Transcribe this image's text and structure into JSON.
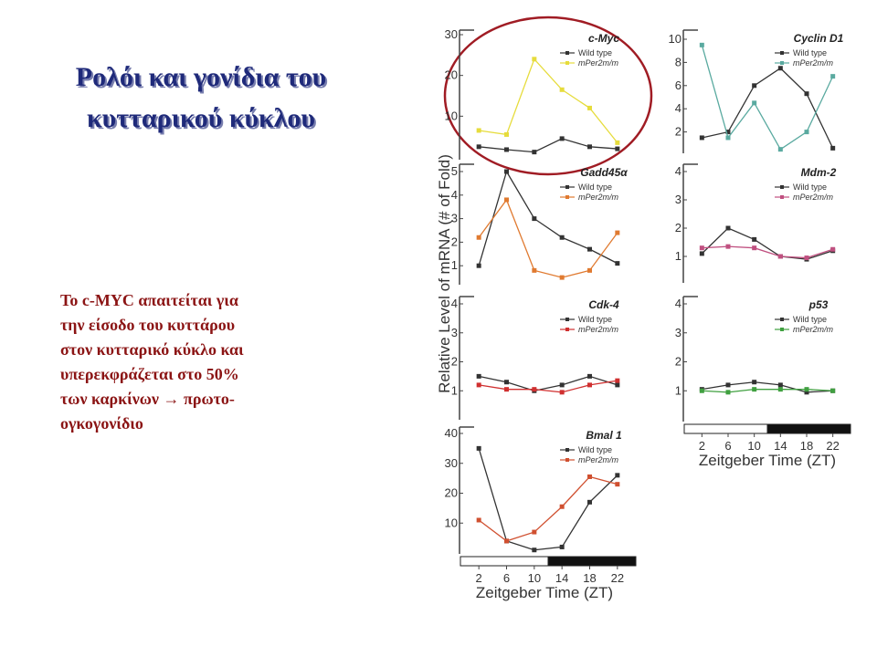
{
  "slide": {
    "title": [
      "Ρολόι και γονίδια του",
      "κυτταρικού κύκλου"
    ],
    "body": [
      "Το c-MYC απαιτείται για",
      "την είσοδο του κυττάρου",
      "στον κυτταρικό κύκλο και",
      "υπερεκφράζεται στο 50%",
      "των καρκίνων → πρωτο-",
      "ογκογονίδιο"
    ],
    "y_label": "Relative Level of mRNA (# of Fold)",
    "x_label": "Zeitgeber Time (ZT)"
  },
  "chart_data": [
    {
      "type": "line",
      "title": "c-Myc",
      "x": [
        2,
        6,
        10,
        14,
        18,
        22
      ],
      "xlim": [
        0,
        24
      ],
      "ylim": [
        0,
        30
      ],
      "yticks": [
        10,
        20,
        30
      ],
      "series": [
        {
          "name": "Wild type",
          "color": "#333333",
          "values": [
            2.5,
            1.8,
            1.2,
            4.5,
            2.5,
            2
          ]
        },
        {
          "name": "mPer2m/m",
          "color": "#e6dc3c",
          "values": [
            6.5,
            5.5,
            24,
            16.5,
            12,
            3.5
          ]
        }
      ]
    },
    {
      "type": "line",
      "title": "Cyclin D1",
      "x": [
        2,
        6,
        10,
        14,
        18,
        22
      ],
      "xlim": [
        0,
        24
      ],
      "ylim": [
        0,
        10
      ],
      "yticks": [
        2,
        4,
        6,
        8,
        10
      ],
      "series": [
        {
          "name": "Wild type",
          "color": "#333333",
          "values": [
            1.5,
            2,
            6,
            7.5,
            5.3,
            0.6
          ]
        },
        {
          "name": "mPer2m/m",
          "color": "#5aaaa0",
          "values": [
            9.5,
            1.5,
            4.5,
            0.5,
            2,
            6.8
          ]
        }
      ]
    },
    {
      "type": "line",
      "title": "Gadd45α",
      "x": [
        2,
        6,
        10,
        14,
        18,
        22
      ],
      "xlim": [
        0,
        24
      ],
      "ylim": [
        0,
        5
      ],
      "yticks": [
        1,
        2,
        3,
        4,
        5
      ],
      "series": [
        {
          "name": "Wild type",
          "color": "#333333",
          "values": [
            1,
            5,
            3,
            2.2,
            1.7,
            1.1
          ]
        },
        {
          "name": "mPer2m/m",
          "color": "#e07a30",
          "values": [
            2.2,
            3.8,
            0.8,
            0.5,
            0.8,
            2.4
          ]
        }
      ]
    },
    {
      "type": "line",
      "title": "Mdm-2",
      "x": [
        2,
        6,
        10,
        14,
        18,
        22
      ],
      "xlim": [
        0,
        24
      ],
      "ylim": [
        0,
        4
      ],
      "yticks": [
        1,
        2,
        3,
        4
      ],
      "series": [
        {
          "name": "Wild type",
          "color": "#333333",
          "values": [
            1.1,
            2,
            1.6,
            1,
            0.9,
            1.2
          ]
        },
        {
          "name": "mPer2m/m",
          "color": "#c05080",
          "values": [
            1.3,
            1.35,
            1.3,
            1,
            0.95,
            1.25
          ]
        }
      ]
    },
    {
      "type": "line",
      "title": "Cdk-4",
      "x": [
        2,
        6,
        10,
        14,
        18,
        22
      ],
      "xlim": [
        0,
        24
      ],
      "ylim": [
        0,
        4
      ],
      "yticks": [
        1,
        2,
        3,
        4
      ],
      "series": [
        {
          "name": "Wild type",
          "color": "#333333",
          "values": [
            1.5,
            1.3,
            1,
            1.2,
            1.5,
            1.2
          ]
        },
        {
          "name": "mPer2m/m",
          "color": "#d03030",
          "values": [
            1.2,
            1.05,
            1.05,
            0.95,
            1.2,
            1.35
          ]
        }
      ]
    },
    {
      "type": "line",
      "title": "p53",
      "x": [
        2,
        6,
        10,
        14,
        18,
        22
      ],
      "xlim": [
        0,
        24
      ],
      "ylim": [
        0,
        4
      ],
      "yticks": [
        1,
        2,
        3,
        4
      ],
      "xticks": [
        2,
        6,
        10,
        14,
        18,
        22
      ],
      "series": [
        {
          "name": "Wild type",
          "color": "#333333",
          "values": [
            1.05,
            1.2,
            1.3,
            1.2,
            0.95,
            1
          ]
        },
        {
          "name": "mPer2m/m",
          "color": "#40a040",
          "values": [
            1,
            0.95,
            1.05,
            1.05,
            1.05,
            1
          ]
        }
      ]
    },
    {
      "type": "line",
      "title": "Bmal 1",
      "x": [
        2,
        6,
        10,
        14,
        18,
        22
      ],
      "xlim": [
        0,
        24
      ],
      "ylim": [
        0,
        40
      ],
      "yticks": [
        10,
        20,
        30,
        40
      ],
      "xticks": [
        2,
        6,
        10,
        14,
        18,
        22
      ],
      "series": [
        {
          "name": "Wild type",
          "color": "#333333",
          "values": [
            35,
            4,
            1,
            2,
            17,
            26
          ]
        },
        {
          "name": "mPer2m/m",
          "color": "#d05030",
          "values": [
            11,
            4,
            7,
            15.5,
            25.5,
            23
          ]
        }
      ]
    }
  ]
}
